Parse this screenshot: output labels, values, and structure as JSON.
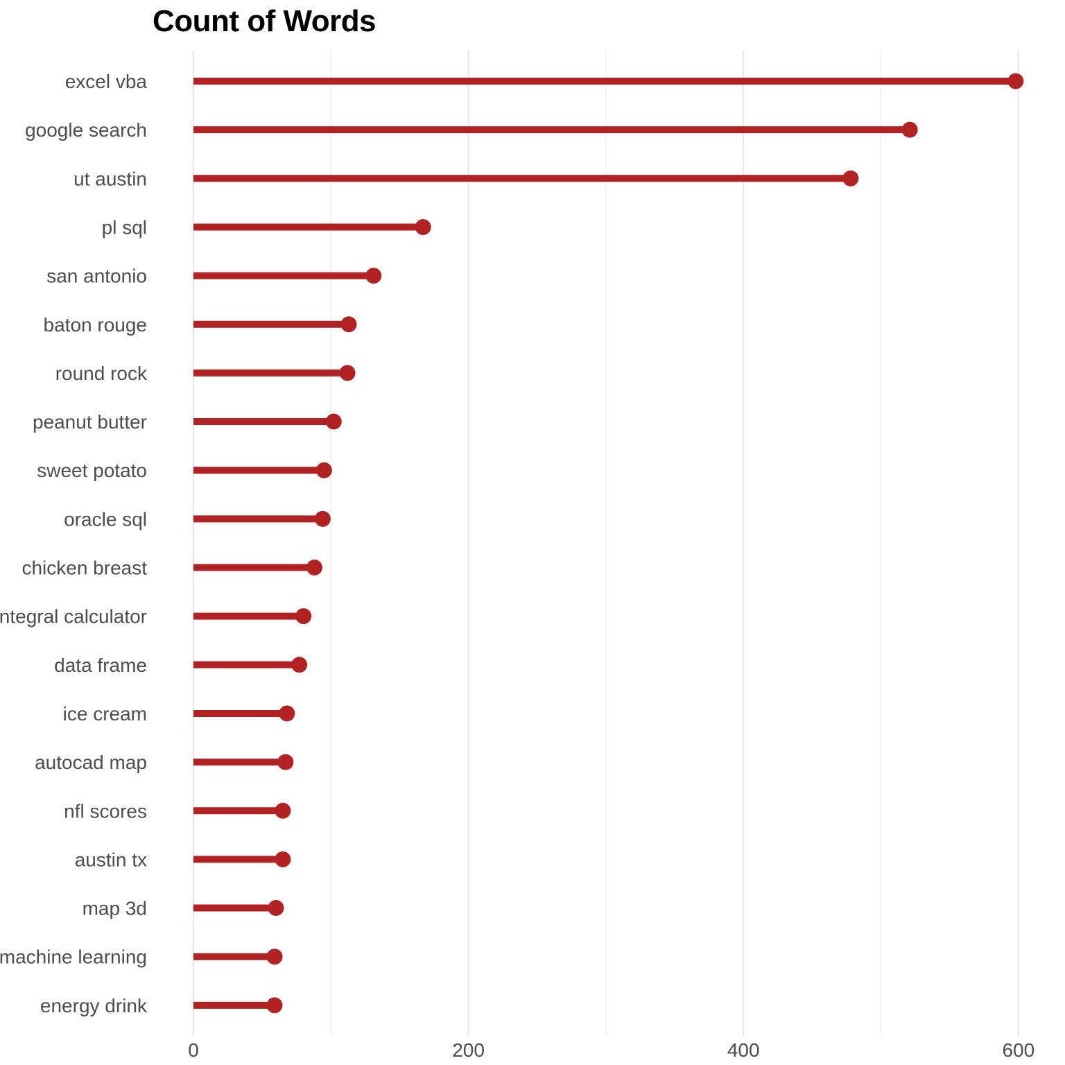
{
  "chart_data": {
    "type": "lollipop",
    "title": "Count of Words",
    "xlabel": "",
    "ylabel": "",
    "xlim": [
      -34,
      605
    ],
    "x_ticks": [
      0,
      200,
      400,
      600
    ],
    "x_minor_gridlines": [
      100,
      300,
      500
    ],
    "grid": true,
    "orientation": "horizontal",
    "color": "#b22222",
    "categories": [
      "excel vba",
      "google search",
      "ut austin",
      "pl sql",
      "san antonio",
      "baton rouge",
      "round rock",
      "peanut butter",
      "sweet potato",
      "oracle sql",
      "chicken breast",
      "integral calculator",
      "data frame",
      "ice cream",
      "autocad map",
      "nfl scores",
      "austin tx",
      "map 3d",
      "machine learning",
      "energy drink"
    ],
    "values": [
      598,
      521,
      478,
      167,
      131,
      113,
      112,
      102,
      95,
      94,
      88,
      80,
      77,
      68,
      67,
      65,
      65,
      60,
      59,
      59
    ]
  }
}
